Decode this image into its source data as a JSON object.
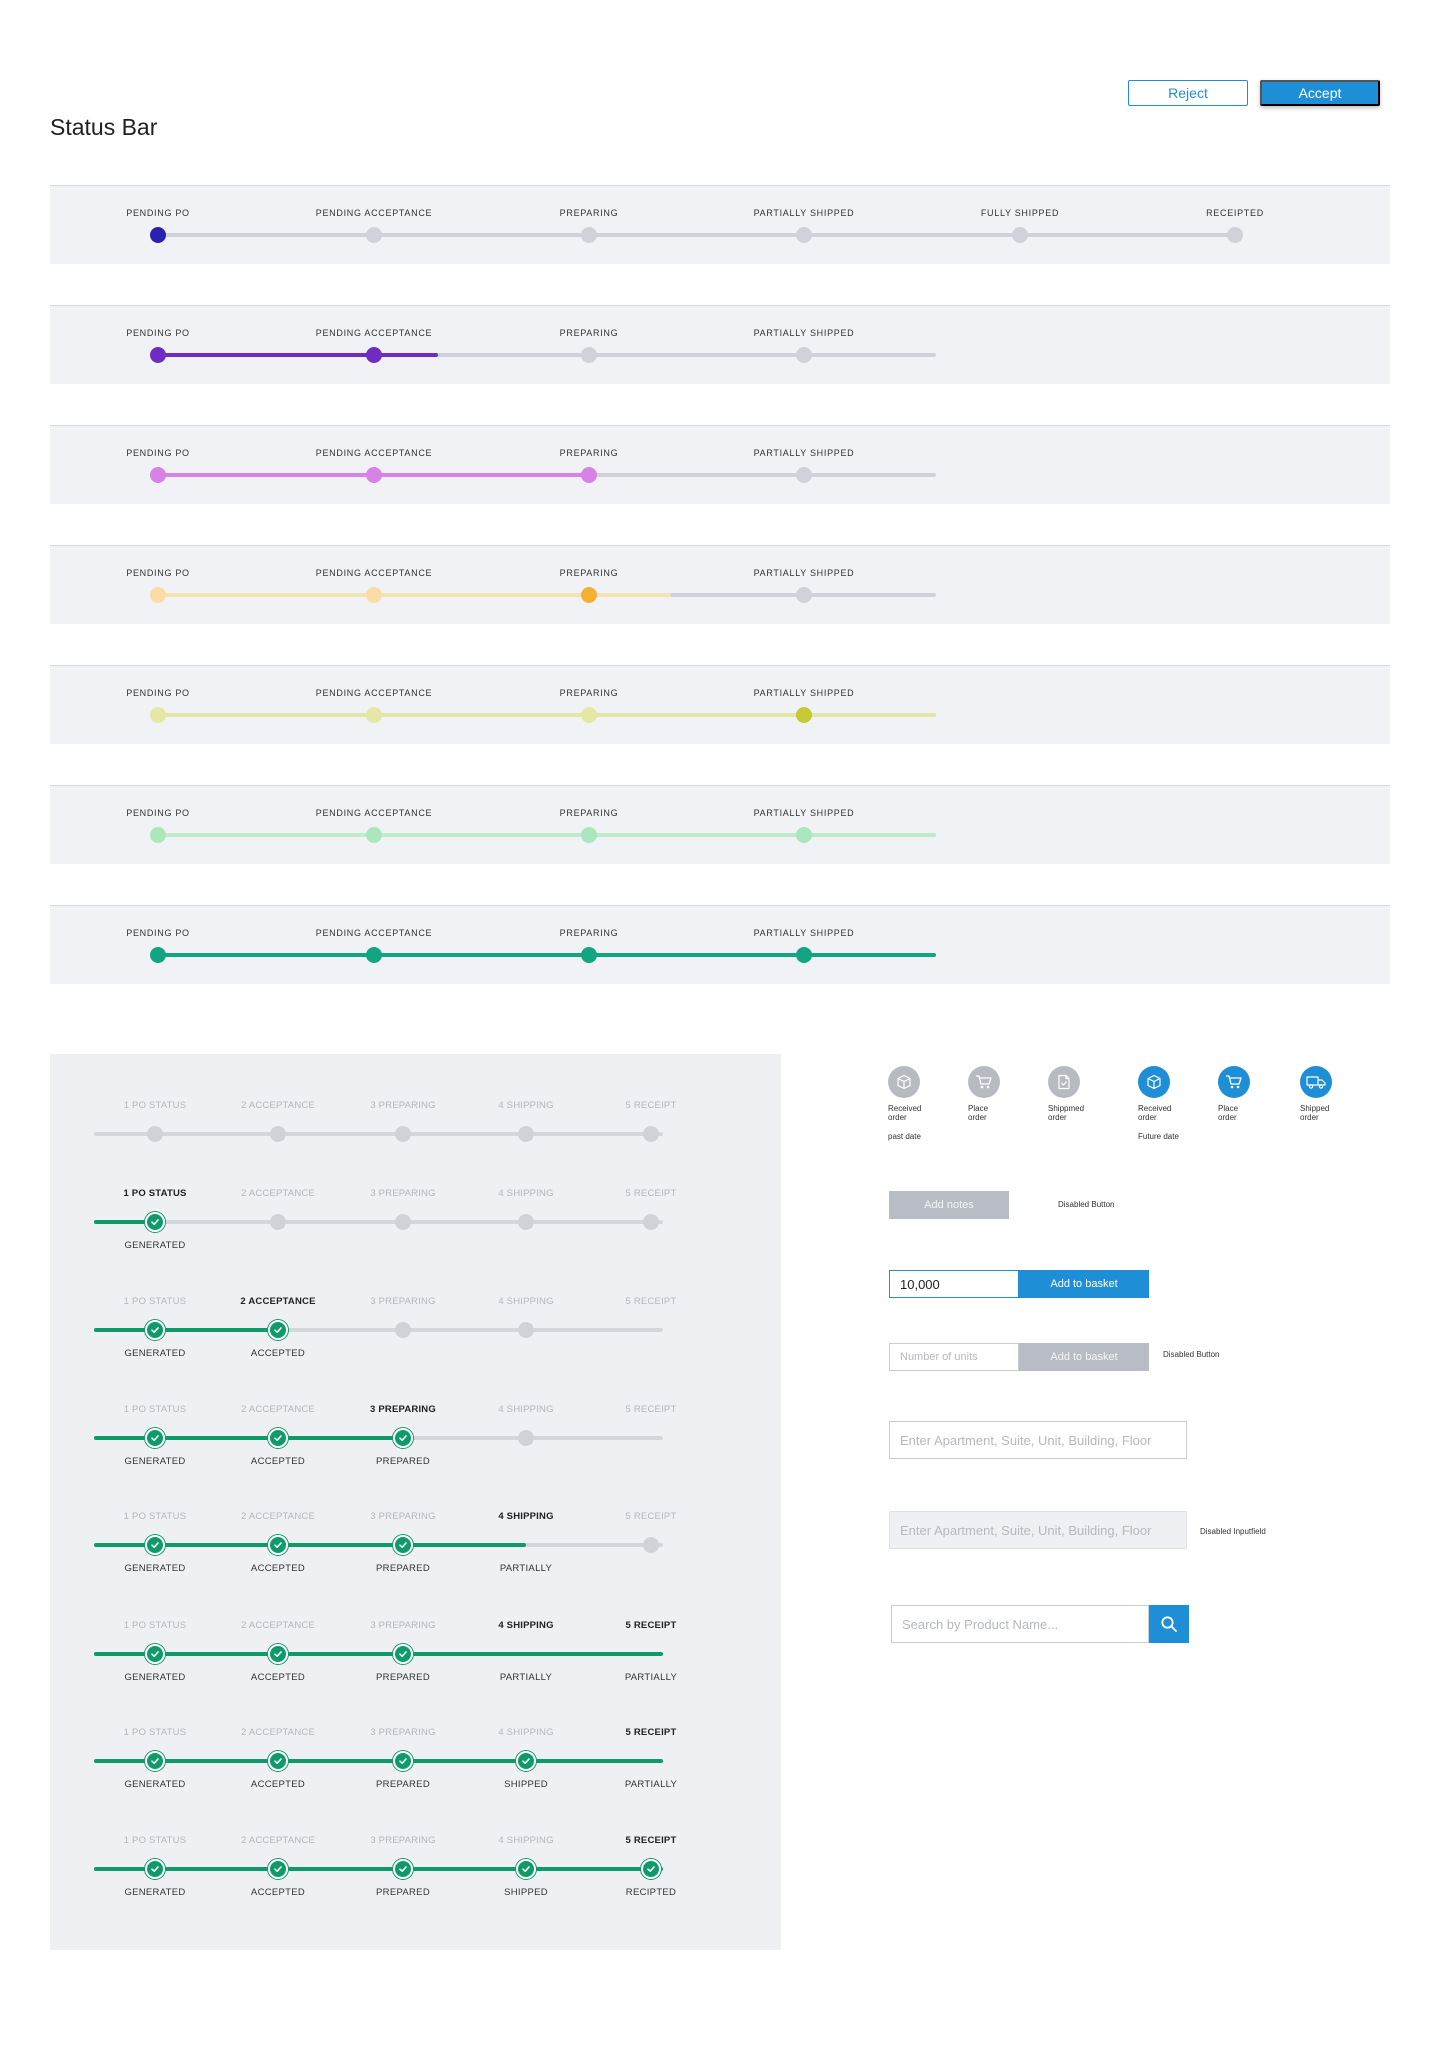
{
  "header": {
    "title": "Status Bar",
    "reject_label": "Reject",
    "accept_label": "Accept"
  },
  "status_bars": [
    {
      "labels": [
        "PENDING PO",
        "PENDING ACCEPTANCE",
        "PREPARING",
        "PARTIALLY SHIPPED",
        "FULLY SHIPPED",
        "RECEIPTED"
      ],
      "progress_percent": 0,
      "current_step": 1,
      "color": "#2b21b0"
    },
    {
      "labels": [
        "PENDING PO",
        "PENDING ACCEPTANCE",
        "PREPARING",
        "PARTIALLY SHIPPED"
      ],
      "progress_percent": 36,
      "current_step": 2,
      "color": "#6f2bc2"
    },
    {
      "labels": [
        "PENDING PO",
        "PENDING ACCEPTANCE",
        "PREPARING",
        "PARTIALLY SHIPPED"
      ],
      "progress_percent": 55,
      "current_step": 3,
      "color": "#d682e6"
    },
    {
      "labels": [
        "PENDING PO",
        "PENDING ACCEPTANCE",
        "PREPARING",
        "PARTIALLY SHIPPED"
      ],
      "progress_percent": 66,
      "current_step": 3,
      "color": "#f3b234"
    },
    {
      "labels": [
        "PENDING PO",
        "PENDING ACCEPTANCE",
        "PREPARING",
        "PARTIALLY SHIPPED"
      ],
      "progress_percent": 100,
      "current_step": 4,
      "color": "#c6ca36"
    },
    {
      "labels": [
        "PENDING PO",
        "PENDING ACCEPTANCE",
        "PREPARING",
        "PARTIALLY SHIPPED"
      ],
      "progress_percent": 100,
      "current_step": 4,
      "color": "#ace6bd"
    },
    {
      "labels": [
        "PENDING PO",
        "PENDING ACCEPTANCE",
        "PREPARING",
        "PARTIALLY SHIPPED"
      ],
      "progress_percent": 100,
      "current_step": 4,
      "color": "#12a582"
    }
  ],
  "stepper": {
    "steps": [
      "1 PO STATUS",
      "2 ACCEPTANCE",
      "3 PREPARING",
      "4 SHIPPING",
      "5 RECEIPT"
    ],
    "rows": [
      {
        "states": [
          "pending",
          "pending",
          "pending",
          "pending",
          "pending"
        ],
        "subs": [
          "",
          "",
          "",
          "",
          ""
        ],
        "active": -1
      },
      {
        "states": [
          "done",
          "pending",
          "pending",
          "pending",
          "pending"
        ],
        "subs": [
          "GENERATED",
          "",
          "",
          "",
          ""
        ],
        "active": 0
      },
      {
        "states": [
          "done",
          "done",
          "pending",
          "pending",
          "none"
        ],
        "subs": [
          "GENERATED",
          "ACCEPTED",
          "",
          "",
          ""
        ],
        "active": 1
      },
      {
        "states": [
          "done",
          "done",
          "done",
          "pending",
          "none"
        ],
        "subs": [
          "GENERATED",
          "ACCEPTED",
          "PREPARED",
          "",
          ""
        ],
        "active": 2
      },
      {
        "states": [
          "done",
          "done",
          "done",
          "partial",
          "pending"
        ],
        "subs": [
          "GENERATED",
          "ACCEPTED",
          "PREPARED",
          "PARTIALLY",
          ""
        ],
        "active": 3
      },
      {
        "states": [
          "done",
          "done",
          "done",
          "partial",
          "partial"
        ],
        "subs": [
          "GENERATED",
          "ACCEPTED",
          "PREPARED",
          "PARTIALLY",
          "PARTIALLY"
        ],
        "active": 4,
        "also_active": 3
      },
      {
        "states": [
          "done",
          "done",
          "done",
          "done",
          "partial"
        ],
        "subs": [
          "GENERATED",
          "ACCEPTED",
          "PREPARED",
          "SHIPPED",
          "PARTIALLY"
        ],
        "active": 4
      },
      {
        "states": [
          "done",
          "done",
          "done",
          "done",
          "done"
        ],
        "subs": [
          "GENERATED",
          "ACCEPTED",
          "PREPARED",
          "SHIPPED",
          "RECIPTED"
        ],
        "active": 4
      }
    ]
  },
  "order_icons": {
    "items": [
      {
        "caption": "Received order",
        "icon": "box-icon",
        "kind": "past"
      },
      {
        "caption": "Place order",
        "icon": "cart-icon",
        "kind": "past"
      },
      {
        "caption": "Shippmed order",
        "icon": "document-icon",
        "kind": "past"
      },
      {
        "caption": "Received order",
        "icon": "box-icon",
        "kind": "future"
      },
      {
        "caption": "Place order",
        "icon": "cart-icon",
        "kind": "future"
      },
      {
        "caption": "Shipped order",
        "icon": "truck-icon",
        "kind": "future"
      }
    ],
    "past_label": "past date",
    "future_label": "Future date"
  },
  "components": {
    "add_notes_label": "Add notes",
    "disabled_button_note": "Disabled Button",
    "quantity_value": "10,000",
    "add_to_basket_label": "Add to basket",
    "units_placeholder": "Number of units",
    "add_to_basket_disabled_label": "Add to basket",
    "disabled_button_note2": "Disabled Button",
    "address_placeholder": "Enter Apartment, Suite, Unit, Building, Floor",
    "address_disabled_placeholder": "Enter Apartment, Suite, Unit, Building, Floor",
    "disabled_input_note": "Disabled Inputfield",
    "search_placeholder": "Search by Product Name..."
  },
  "colors": {
    "accent": "#1e8fd6",
    "track": "#cfd2d9",
    "stepper_green": "#0f9a6a"
  }
}
